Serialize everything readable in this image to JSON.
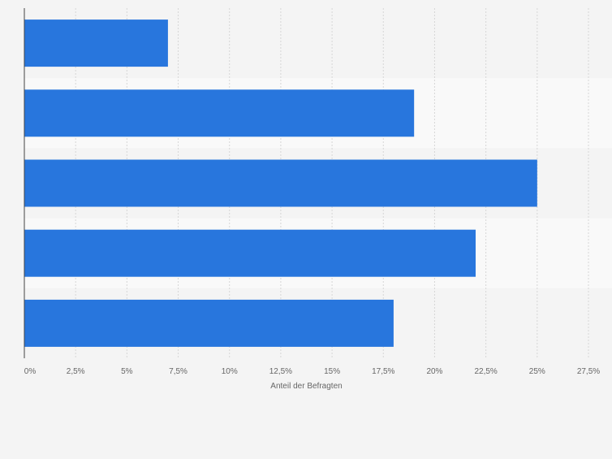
{
  "chart_data": {
    "type": "bar",
    "orientation": "horizontal",
    "categories": [
      "",
      "",
      "",
      "",
      ""
    ],
    "values": [
      7,
      19,
      25,
      22,
      18
    ],
    "xlabel": "Anteil der Befragten",
    "ylabel": "",
    "xlim": [
      0,
      27.5
    ],
    "xticks": [
      0,
      2.5,
      5,
      7.5,
      10,
      12.5,
      15,
      17.5,
      20,
      22.5,
      25,
      27.5
    ],
    "xtick_labels": [
      "0%",
      "2,5%",
      "5%",
      "7,5%",
      "10%",
      "12,5%",
      "15%",
      "17,5%",
      "20%",
      "22,5%",
      "25%",
      "27,5%"
    ],
    "grid": true,
    "legend": "none",
    "colors": {
      "bar": "#2876dd",
      "background": "#f4f4f4",
      "band": "#f9f9f9",
      "grid": "#d6d6d6",
      "axis": "#444444",
      "text": "#666666"
    }
  }
}
